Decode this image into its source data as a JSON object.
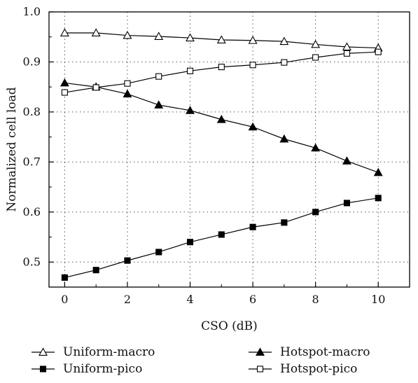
{
  "chart_data": {
    "type": "line",
    "title": "",
    "xlabel": "CSO (dB)",
    "ylabel": "Normalized cell load",
    "xlim": [
      -0.5,
      11
    ],
    "ylim": [
      0.45,
      1.0
    ],
    "xticks": [
      0,
      2,
      4,
      6,
      8,
      10
    ],
    "yticks": [
      0.5,
      0.6,
      0.7,
      0.8,
      0.9,
      1.0
    ],
    "ytick_labels": [
      "0.5",
      "0.6",
      "0.7",
      "0.8",
      "0.9",
      "1.0"
    ],
    "grid": true,
    "legend_position": "bottom",
    "x": [
      0,
      1,
      2,
      3,
      4,
      5,
      6,
      7,
      8,
      9,
      10
    ],
    "series": [
      {
        "name": "Uniform-macro",
        "marker": "triangle-open",
        "color": "#000000",
        "values": [
          0.958,
          0.958,
          0.953,
          0.951,
          0.948,
          0.944,
          0.943,
          0.941,
          0.935,
          0.93,
          0.928
        ]
      },
      {
        "name": "Hotspot-macro",
        "marker": "triangle-filled",
        "color": "#000000",
        "values": [
          0.858,
          0.85,
          0.836,
          0.814,
          0.803,
          0.785,
          0.77,
          0.746,
          0.728,
          0.702,
          0.679
        ]
      },
      {
        "name": "Uniform-pico",
        "marker": "square-filled",
        "color": "#000000",
        "values": [
          0.469,
          0.484,
          0.503,
          0.52,
          0.54,
          0.555,
          0.57,
          0.579,
          0.6,
          0.618,
          0.628
        ]
      },
      {
        "name": "Hotspot-pico",
        "marker": "square-open",
        "color": "#000000",
        "values": [
          0.839,
          0.849,
          0.857,
          0.871,
          0.882,
          0.89,
          0.894,
          0.899,
          0.909,
          0.917,
          0.92
        ]
      }
    ]
  },
  "legend": {
    "items": [
      {
        "label": "Uniform-macro",
        "marker": "triangle-open"
      },
      {
        "label": "Hotspot-macro",
        "marker": "triangle-filled"
      },
      {
        "label": "Uniform-pico",
        "marker": "square-filled"
      },
      {
        "label": "Hotspot-pico",
        "marker": "square-open"
      }
    ]
  }
}
